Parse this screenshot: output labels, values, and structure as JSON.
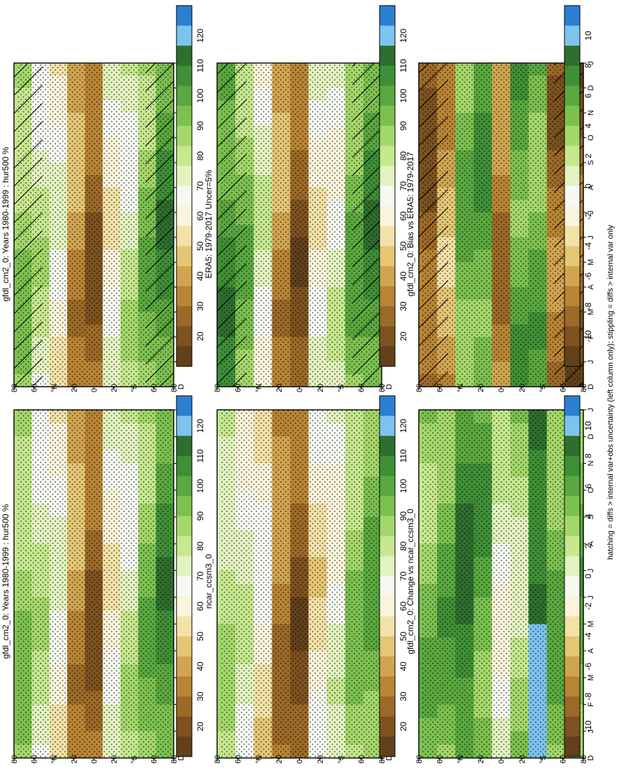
{
  "footnote": "hatching = diffs > internal var+obs uncertainty (left column only); stippling = diffs > internal var only",
  "months": [
    "D",
    "J",
    "F",
    "M",
    "A",
    "M",
    "J",
    "J",
    "A",
    "S",
    "O",
    "N",
    "D",
    "J"
  ],
  "lat_ticks": [
    "80",
    "60",
    "°N",
    "20",
    "0",
    "20",
    "°S",
    "60",
    "80"
  ],
  "colorbars": {
    "absolute": {
      "labels": [
        "120",
        "110",
        "100",
        "90",
        "80",
        "70",
        "60",
        "50",
        "40",
        "30",
        "20"
      ],
      "colors": [
        "#2b7fd1",
        "#7cc3ee",
        "#2e6e2e",
        "#3f8f36",
        "#5aa83f",
        "#7cc150",
        "#a4d86a",
        "#c6e88f",
        "#e3f3c0",
        "#f6f9f2",
        "#fbf4dc",
        "#f3e2a8",
        "#e5c675",
        "#d1a550",
        "#b98535",
        "#9c6a28",
        "#7d5220",
        "#62401b"
      ]
    },
    "difference": {
      "labels": [
        "10",
        "8",
        "6",
        "4",
        "2",
        "0",
        "-2",
        "-4",
        "-6",
        "-8",
        "-10"
      ],
      "colors": [
        "#2b7fd1",
        "#7cc3ee",
        "#2e6e2e",
        "#3f8f36",
        "#5aa83f",
        "#7cc150",
        "#a4d86a",
        "#c6e88f",
        "#e3f3c0",
        "#f6f9f2",
        "#fbf4dc",
        "#f3e2a8",
        "#e5c675",
        "#d1a550",
        "#b98535",
        "#9c6a28",
        "#7d5220",
        "#62401b"
      ]
    }
  },
  "chart_data": [
    {
      "type": "heatmap",
      "title": "gfdl_cm2_0: Years 1980-1999 : hur500 %",
      "x": [
        "D",
        "J",
        "F",
        "M",
        "A",
        "M",
        "J",
        "J",
        "A",
        "S",
        "O",
        "N",
        "D",
        "J"
      ],
      "y": [
        "80",
        "60",
        "°N",
        "20",
        "0",
        "20",
        "°S",
        "60",
        "80"
      ],
      "bands": [
        0.35,
        0.45,
        0.55,
        0.78,
        0.88,
        0.55,
        0.45,
        0.32,
        0.22
      ],
      "hatching": true,
      "stippling": true
    },
    {
      "type": "heatmap",
      "title": "gfdl_cm2_0: Years 1980-1999 : hur500 %",
      "x": [
        "D",
        "J",
        "F",
        "M",
        "A",
        "M",
        "J",
        "J",
        "A",
        "S",
        "O",
        "N",
        "D",
        "J"
      ],
      "y": [
        "80",
        "60",
        "°N",
        "20",
        "0",
        "20",
        "°S",
        "60",
        "80"
      ],
      "bands": [
        0.35,
        0.45,
        0.55,
        0.78,
        0.88,
        0.55,
        0.45,
        0.32,
        0.22
      ],
      "hatching": false,
      "stippling": true
    },
    {
      "type": "heatmap",
      "title": "ERA5: 1979-2017 Uncer=5%",
      "x": [
        "D",
        "J",
        "F",
        "M",
        "A",
        "M",
        "J",
        "J",
        "A",
        "S",
        "O",
        "N",
        "D",
        "J"
      ],
      "y": [
        "80",
        "60",
        "°N",
        "20",
        "0",
        "20",
        "°S",
        "60",
        "80"
      ],
      "bands": [
        0.22,
        0.32,
        0.5,
        0.78,
        0.9,
        0.55,
        0.5,
        0.3,
        0.22
      ],
      "hatching": true,
      "stippling": true
    },
    {
      "type": "heatmap",
      "title": "ncar_ccsm3_0",
      "x": [
        "D",
        "J",
        "F",
        "M",
        "A",
        "M",
        "J",
        "J",
        "A",
        "S",
        "O",
        "N",
        "D",
        "J"
      ],
      "y": [
        "80",
        "60",
        "°N",
        "20",
        "0",
        "20",
        "°S",
        "60",
        "80"
      ],
      "bands": [
        0.42,
        0.5,
        0.6,
        0.82,
        0.9,
        0.6,
        0.52,
        0.35,
        0.3
      ],
      "hatching": false,
      "stippling": true
    },
    {
      "type": "heatmap",
      "title": "gfdl_cm2_0: Bias vs ERA5: 1979-2017",
      "x": [
        "D",
        "J",
        "F",
        "M",
        "A",
        "M",
        "J",
        "J",
        "A",
        "S",
        "O",
        "N",
        "D",
        "J"
      ],
      "y": [
        "80",
        "60",
        "°N",
        "20",
        "0",
        "20",
        "°S",
        "60",
        "80"
      ],
      "bands": [
        0.88,
        0.75,
        0.3,
        0.25,
        0.82,
        0.25,
        0.28,
        0.85,
        0.9
      ],
      "hatching": true,
      "stippling": true
    },
    {
      "type": "heatmap",
      "title": "gfdl_cm2_0: Change vs ncar_ccsm3_0",
      "x": [
        "D",
        "J",
        "F",
        "M",
        "A",
        "M",
        "J",
        "J",
        "A",
        "S",
        "O",
        "N",
        "D",
        "J"
      ],
      "y": [
        "80",
        "60",
        "°N",
        "20",
        "0",
        "20",
        "°S",
        "60",
        "80"
      ],
      "bands": [
        0.32,
        0.28,
        0.18,
        0.26,
        0.5,
        0.4,
        0.12,
        0.3,
        0.28
      ],
      "hatching": false,
      "stippling": true
    }
  ]
}
